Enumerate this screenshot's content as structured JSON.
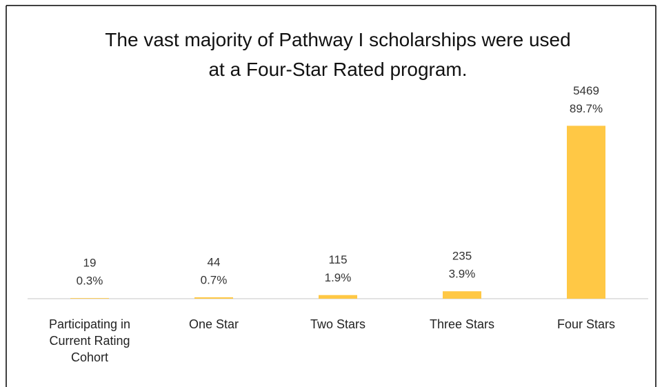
{
  "chart_data": {
    "type": "bar",
    "title": "The vast majority of Pathway I scholarships were used at a Four-Star Rated program.",
    "categories": [
      "Participating in Current Rating Cohort",
      "One Star",
      "Two Stars",
      "Three Stars",
      "Four Stars"
    ],
    "values": [
      19,
      44,
      115,
      235,
      5469
    ],
    "percent_labels": [
      "0.3%",
      "0.7%",
      "1.9%",
      "3.9%",
      "89.7%"
    ],
    "color": "#ffc845",
    "ylim": [
      0,
      6000
    ]
  }
}
